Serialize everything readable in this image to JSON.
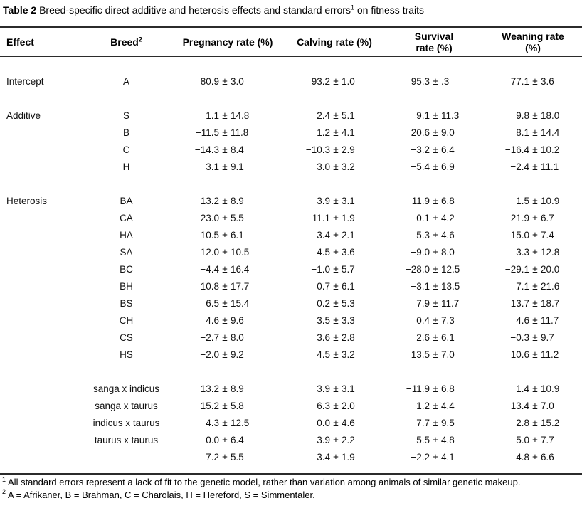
{
  "title": {
    "label": "Table 2",
    "text": " Breed-specific direct additive and heterosis effects and standard errors",
    "sup": "1",
    "tail": " on fitness traits"
  },
  "table": {
    "plus_minus": "±",
    "headers": {
      "effect": "Effect",
      "breed": {
        "text": "Breed",
        "sup": "2"
      },
      "traits": [
        {
          "line1": "Pregnancy rate (%)",
          "line2": ""
        },
        {
          "line1": "Calving rate (%)",
          "line2": ""
        },
        {
          "line1": "Survival",
          "line2": "rate (%)"
        },
        {
          "line1": "Weaning rate",
          "line2": "(%)"
        }
      ]
    },
    "sections": [
      {
        "effect": "Intercept",
        "rows": [
          {
            "breed": "A",
            "cells": [
              {
                "v": "80.9",
                "e": "3.0"
              },
              {
                "v": "93.2",
                "e": "1.0"
              },
              {
                "v": "95.3",
                "e": ".3"
              },
              {
                "v": "77.1",
                "e": "3.6"
              }
            ]
          }
        ]
      },
      {
        "effect": "Additive",
        "rows": [
          {
            "breed": "S",
            "cells": [
              {
                "v": "1.1",
                "e": "14.8"
              },
              {
                "v": "2.4",
                "e": "5.1"
              },
              {
                "v": "9.1",
                "e": "11.3"
              },
              {
                "v": "9.8",
                "e": "18.0"
              }
            ]
          },
          {
            "breed": "B",
            "cells": [
              {
                "v": "−11.5",
                "e": "11.8"
              },
              {
                "v": "1.2",
                "e": "4.1"
              },
              {
                "v": "20.6",
                "e": "9.0"
              },
              {
                "v": "8.1",
                "e": "14.4"
              }
            ]
          },
          {
            "breed": "C",
            "cells": [
              {
                "v": "−14.3",
                "e": "8.4"
              },
              {
                "v": "−10.3",
                "e": "2.9"
              },
              {
                "v": "−3.2",
                "e": "6.4"
              },
              {
                "v": "−16.4",
                "e": "10.2"
              }
            ]
          },
          {
            "breed": "H",
            "cells": [
              {
                "v": "3.1",
                "e": "9.1"
              },
              {
                "v": "3.0",
                "e": "3.2"
              },
              {
                "v": "−5.4",
                "e": "6.9"
              },
              {
                "v": "−2.4",
                "e": "11.1"
              }
            ]
          }
        ]
      },
      {
        "effect": "Heterosis",
        "rows": [
          {
            "breed": "BA",
            "cells": [
              {
                "v": "13.2",
                "e": "8.9"
              },
              {
                "v": "3.9",
                "e": "3.1"
              },
              {
                "v": "−11.9",
                "e": "6.8"
              },
              {
                "v": "1.5",
                "e": "10.9"
              }
            ]
          },
          {
            "breed": "CA",
            "cells": [
              {
                "v": "23.0",
                "e": "5.5"
              },
              {
                "v": "11.1",
                "e": "1.9"
              },
              {
                "v": "0.1",
                "e": "4.2"
              },
              {
                "v": "21.9",
                "e": "6.7"
              }
            ]
          },
          {
            "breed": "HA",
            "cells": [
              {
                "v": "10.5",
                "e": "6.1"
              },
              {
                "v": "3.4",
                "e": "2.1"
              },
              {
                "v": "5.3",
                "e": "4.6"
              },
              {
                "v": "15.0",
                "e": "7.4"
              }
            ]
          },
          {
            "breed": "SA",
            "cells": [
              {
                "v": "12.0",
                "e": "10.5"
              },
              {
                "v": "4.5",
                "e": "3.6"
              },
              {
                "v": "−9.0",
                "e": "8.0"
              },
              {
                "v": "3.3",
                "e": "12.8"
              }
            ]
          },
          {
            "breed": "BC",
            "cells": [
              {
                "v": "−4.4",
                "e": "16.4"
              },
              {
                "v": "−1.0",
                "e": "5.7"
              },
              {
                "v": "−28.0",
                "e": "12.5"
              },
              {
                "v": "−29.1",
                "e": "20.0"
              }
            ]
          },
          {
            "breed": "BH",
            "cells": [
              {
                "v": "10.8",
                "e": "17.7"
              },
              {
                "v": "0.7",
                "e": "6.1"
              },
              {
                "v": "−3.1",
                "e": "13.5"
              },
              {
                "v": "7.1",
                "e": "21.6"
              }
            ]
          },
          {
            "breed": "BS",
            "cells": [
              {
                "v": "6.5",
                "e": "15.4"
              },
              {
                "v": "0.2",
                "e": "5.3"
              },
              {
                "v": "7.9",
                "e": "11.7"
              },
              {
                "v": "13.7",
                "e": "18.7"
              }
            ]
          },
          {
            "breed": "CH",
            "cells": [
              {
                "v": "4.6",
                "e": "9.6"
              },
              {
                "v": "3.5",
                "e": "3.3"
              },
              {
                "v": "0.4",
                "e": "7.3"
              },
              {
                "v": "4.6",
                "e": "11.7"
              }
            ]
          },
          {
            "breed": "CS",
            "cells": [
              {
                "v": "−2.7",
                "e": "8.0"
              },
              {
                "v": "3.6",
                "e": "2.8"
              },
              {
                "v": "2.6",
                "e": "6.1"
              },
              {
                "v": "−0.3",
                "e": "9.7"
              }
            ]
          },
          {
            "breed": "HS",
            "cells": [
              {
                "v": "−2.0",
                "e": "9.2"
              },
              {
                "v": "4.5",
                "e": "3.2"
              },
              {
                "v": "13.5",
                "e": "7.0"
              },
              {
                "v": "10.6",
                "e": "11.2"
              }
            ]
          }
        ]
      },
      {
        "effect": "",
        "rows": [
          {
            "breed": "sanga x indicus",
            "cells": [
              {
                "v": "13.2",
                "e": "8.9"
              },
              {
                "v": "3.9",
                "e": "3.1"
              },
              {
                "v": "−11.9",
                "e": "6.8"
              },
              {
                "v": "1.4",
                "e": "10.9"
              }
            ]
          },
          {
            "breed": "sanga x taurus",
            "cells": [
              {
                "v": "15.2",
                "e": "5.8"
              },
              {
                "v": "6.3",
                "e": "2.0"
              },
              {
                "v": "−1.2",
                "e": "4.4"
              },
              {
                "v": "13.4",
                "e": "7.0"
              }
            ]
          },
          {
            "breed": "indicus x taurus",
            "cells": [
              {
                "v": "4.3",
                "e": "12.5"
              },
              {
                "v": "0.0",
                "e": "4.6"
              },
              {
                "v": "−7.7",
                "e": "9.5"
              },
              {
                "v": "−2.8",
                "e": "15.2"
              }
            ]
          },
          {
            "breed": "taurus x taurus",
            "cells": [
              {
                "v": "0.0",
                "e": "6.4"
              },
              {
                "v": "3.9",
                "e": "2.2"
              },
              {
                "v": "5.5",
                "e": "4.8"
              },
              {
                "v": "5.0",
                "e": "7.7"
              }
            ]
          },
          {
            "breed": "",
            "cells": [
              {
                "v": "7.2",
                "e": "5.5"
              },
              {
                "v": "3.4",
                "e": "1.9"
              },
              {
                "v": "−2.2",
                "e": "4.1"
              },
              {
                "v": "4.8",
                "e": "6.6"
              }
            ]
          }
        ]
      }
    ]
  },
  "footnotes": [
    {
      "sup": "1",
      "text": "All standard errors represent a lack of fit to the genetic model, rather than variation among animals of similar genetic makeup."
    },
    {
      "sup": "2",
      "text": "A = Afrikaner, B = Brahman, C = Charolais, H = Hereford, S = Simmentaler."
    }
  ]
}
